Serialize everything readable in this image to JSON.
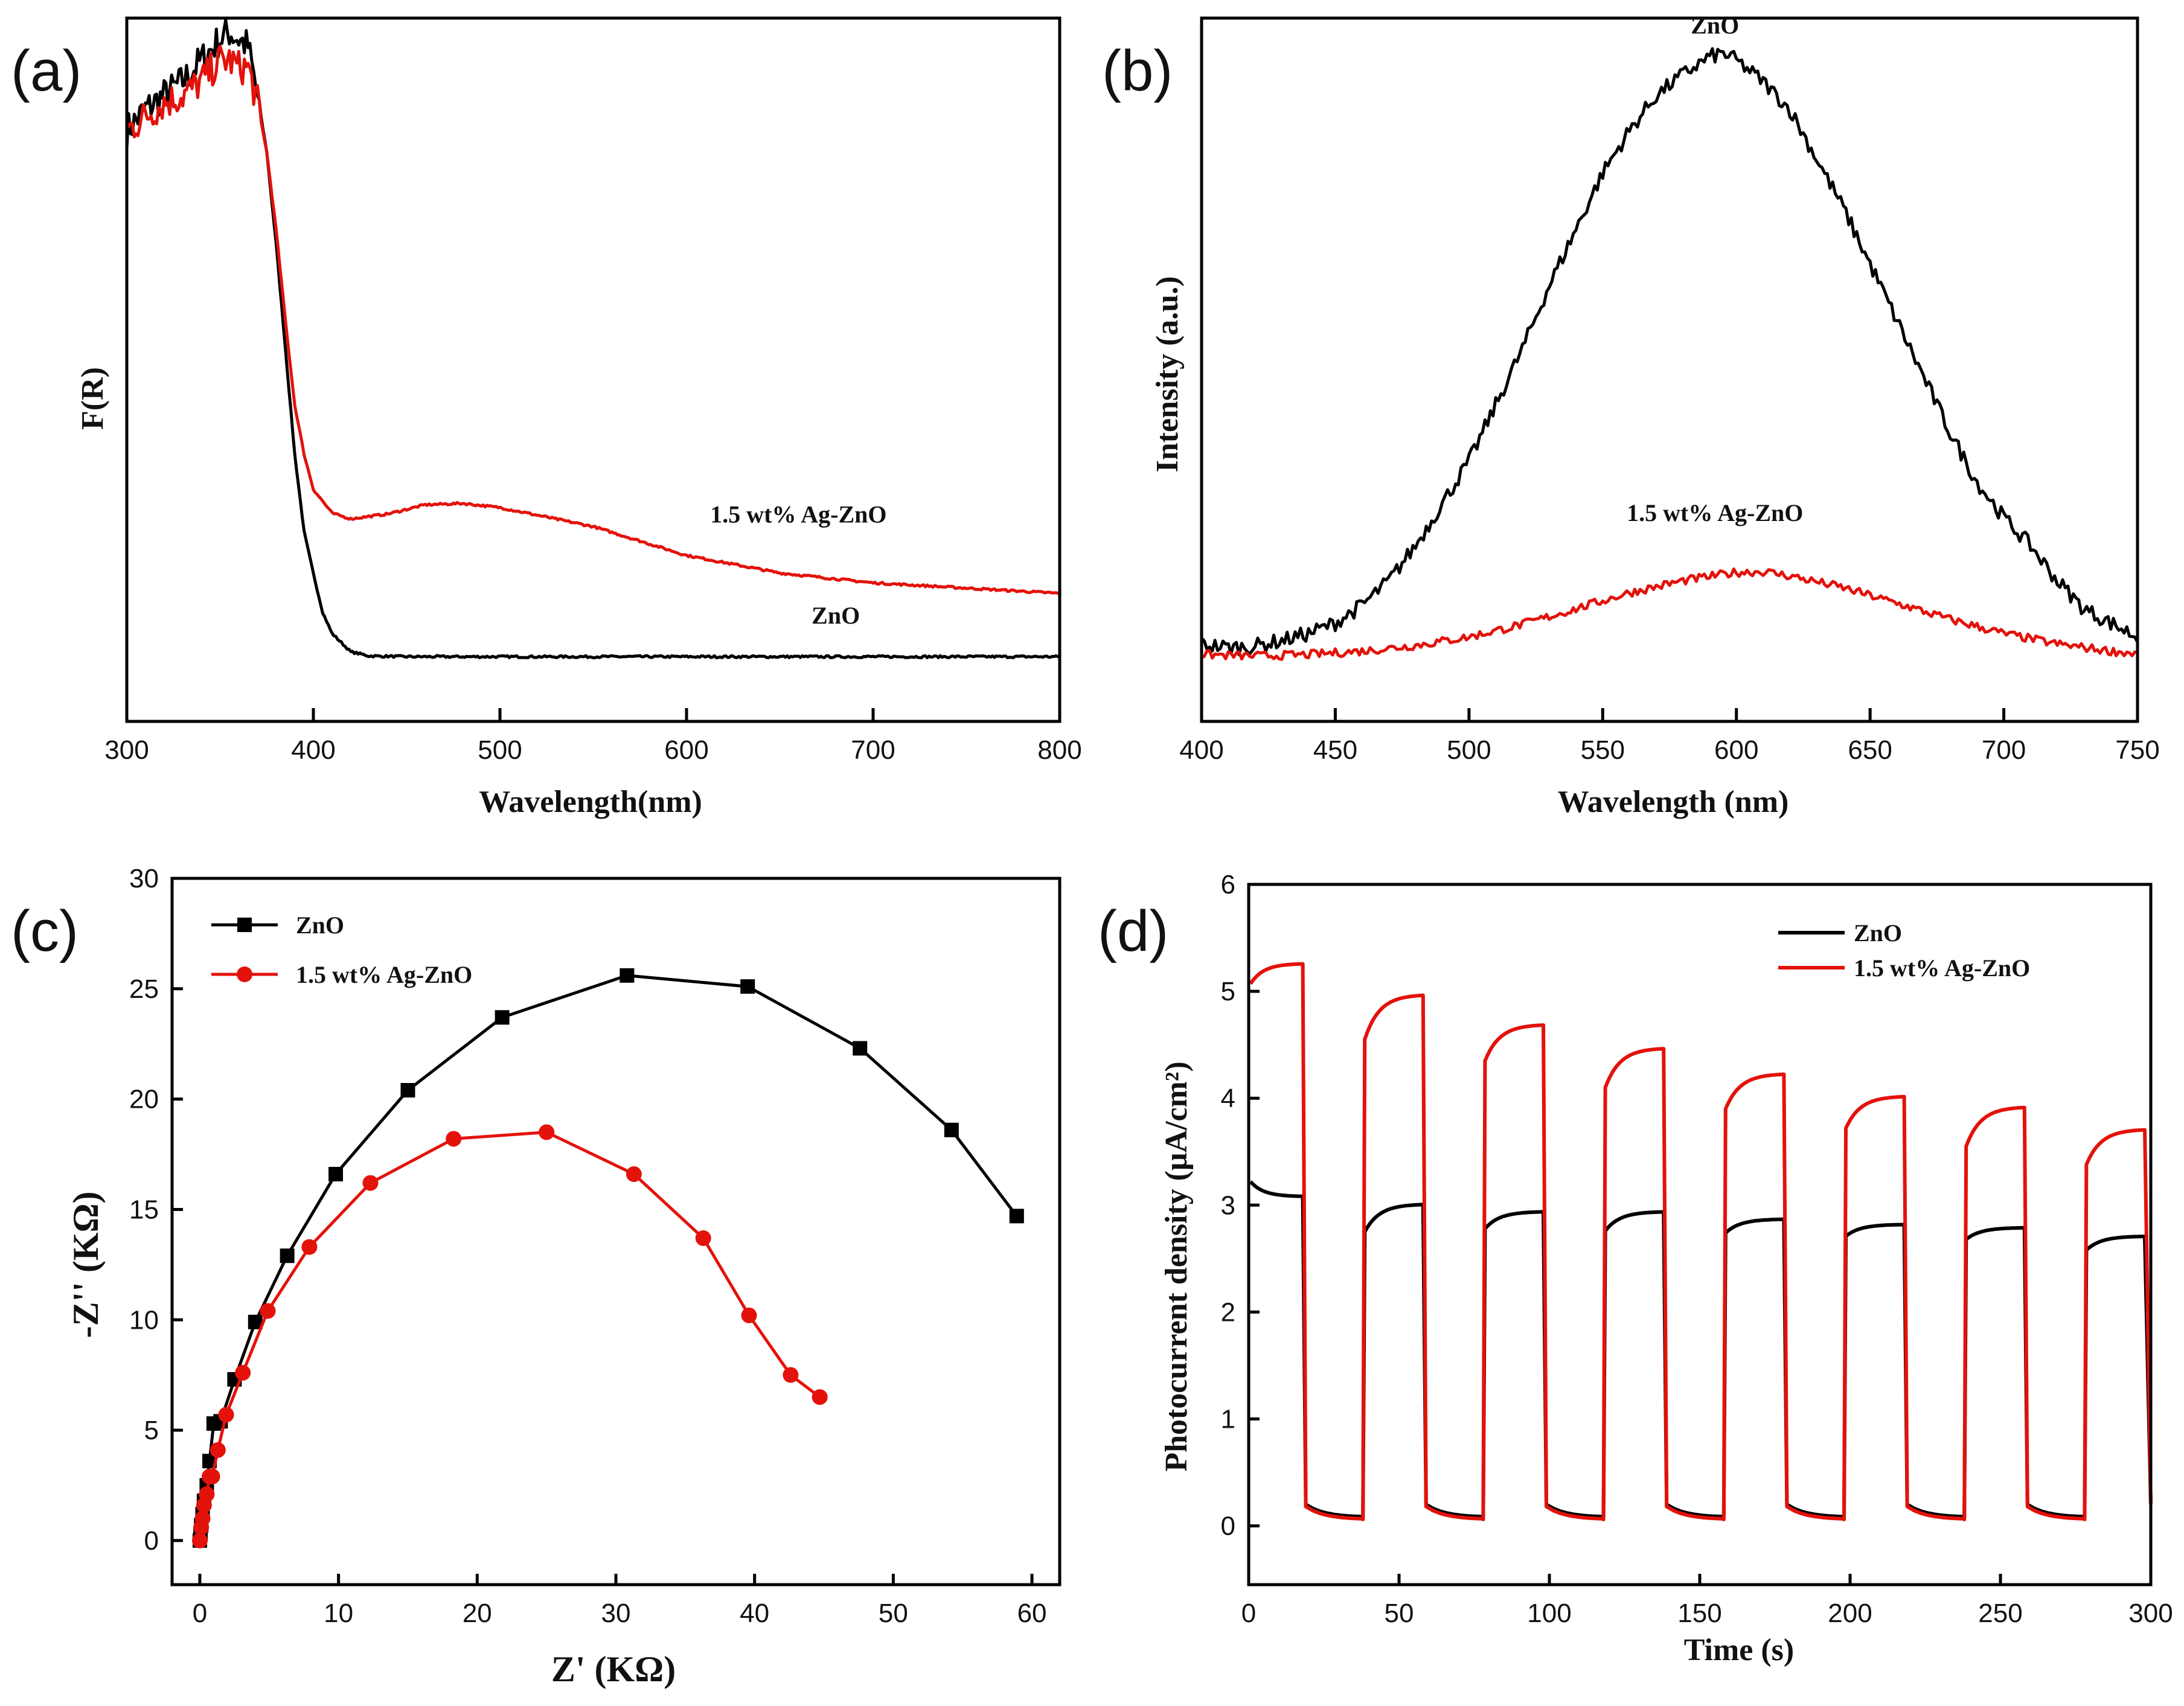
{
  "chart_data": [
    {
      "panel": "(a)",
      "type": "line",
      "xlabel": "Wavelength(nm)",
      "ylabel": "F(R)",
      "xlim": [
        300,
        800
      ],
      "ylim": [
        0,
        1.0
      ],
      "xticks": [
        "300",
        "400",
        "500",
        "600",
        "700",
        "800"
      ],
      "yticks_shown": false,
      "annotations": [
        {
          "text": "1.5 wt% Ag-ZnO",
          "x": 660,
          "y": 0.283
        },
        {
          "text": "ZnO",
          "x": 680,
          "y": 0.139
        }
      ],
      "colors": {
        "ZnO": "#000000",
        "1.5 wt% Ag-ZnO": "#e3120b"
      },
      "series": [
        {
          "name": "ZnO",
          "x": [
            300,
            310,
            320,
            330,
            340,
            350,
            355,
            360,
            365,
            370,
            375,
            380,
            385,
            390,
            395,
            400,
            405,
            410,
            420,
            430,
            450,
            500,
            600,
            700,
            800
          ],
          "y": [
            0.84,
            0.87,
            0.89,
            0.91,
            0.94,
            0.97,
            0.98,
            0.97,
            0.96,
            0.89,
            0.81,
            0.68,
            0.53,
            0.38,
            0.27,
            0.21,
            0.155,
            0.125,
            0.099,
            0.093,
            0.092,
            0.092,
            0.092,
            0.092,
            0.092
          ]
        },
        {
          "name": "1.5 wt% Ag-ZnO",
          "x": [
            300,
            310,
            320,
            330,
            340,
            350,
            355,
            360,
            365,
            370,
            375,
            380,
            385,
            390,
            395,
            400,
            410,
            420,
            440,
            460,
            480,
            500,
            550,
            600,
            650,
            700,
            800
          ],
          "y": [
            0.84,
            0.86,
            0.88,
            0.89,
            0.91,
            0.94,
            0.94,
            0.93,
            0.93,
            0.88,
            0.81,
            0.7,
            0.57,
            0.45,
            0.38,
            0.33,
            0.296,
            0.288,
            0.295,
            0.308,
            0.31,
            0.304,
            0.277,
            0.236,
            0.211,
            0.197,
            0.182
          ]
        }
      ]
    },
    {
      "panel": "(b)",
      "type": "line",
      "xlabel": "Wavelength (nm)",
      "ylabel": "Intensity (a.u.)",
      "xlim": [
        400,
        750
      ],
      "ylim": [
        0,
        1.0
      ],
      "xticks": [
        "400",
        "450",
        "500",
        "550",
        "600",
        "650",
        "700",
        "750"
      ],
      "yticks_shown": false,
      "annotations": [
        {
          "text": "ZnO",
          "x": 592,
          "y": 0.978
        },
        {
          "text": "1.5 wt% Ag-ZnO",
          "x": 592,
          "y": 0.285
        }
      ],
      "colors": {
        "ZnO": "#000000",
        "1.5 wt% Ag-ZnO": "#e3120b"
      },
      "series": [
        {
          "name": "ZnO",
          "x": [
            400,
            410,
            420,
            430,
            440,
            450,
            460,
            470,
            480,
            490,
            500,
            510,
            520,
            530,
            540,
            550,
            560,
            570,
            580,
            590,
            595,
            600,
            610,
            620,
            630,
            640,
            650,
            660,
            670,
            680,
            690,
            700,
            710,
            720,
            730,
            740,
            750
          ],
          "y": [
            0.11,
            0.105,
            0.107,
            0.115,
            0.125,
            0.14,
            0.165,
            0.2,
            0.25,
            0.31,
            0.37,
            0.45,
            0.53,
            0.62,
            0.7,
            0.78,
            0.84,
            0.89,
            0.92,
            0.945,
            0.95,
            0.94,
            0.91,
            0.87,
            0.8,
            0.73,
            0.65,
            0.57,
            0.49,
            0.41,
            0.34,
            0.29,
            0.25,
            0.2,
            0.16,
            0.14,
            0.12
          ]
        },
        {
          "name": "1.5 wt% Ag-ZnO",
          "x": [
            400,
            420,
            440,
            460,
            480,
            500,
            520,
            540,
            560,
            580,
            600,
            610,
            620,
            640,
            660,
            680,
            700,
            720,
            740,
            750
          ],
          "y": [
            0.095,
            0.093,
            0.095,
            0.1,
            0.108,
            0.12,
            0.138,
            0.16,
            0.183,
            0.2,
            0.212,
            0.213,
            0.207,
            0.19,
            0.168,
            0.145,
            0.125,
            0.11,
            0.1,
            0.096
          ]
        }
      ]
    },
    {
      "panel": "(c)",
      "type": "scatter",
      "xlabel": "Z' (KΩ)",
      "ylabel": "-Z'' (KΩ)",
      "xlim": [
        -2,
        62
      ],
      "ylim": [
        -2,
        30
      ],
      "xticks": [
        "0",
        "10",
        "20",
        "30",
        "40",
        "50",
        "60"
      ],
      "yticks": [
        "0",
        "5",
        "10",
        "15",
        "20",
        "25",
        "30"
      ],
      "legend": [
        "ZnO",
        "1.5 wt% Ag-ZnO"
      ],
      "colors": {
        "ZnO": "#000000",
        "1.5 wt% Ag-ZnO": "#e3120b"
      },
      "series": [
        {
          "name": "ZnO",
          "marker": "square",
          "x": [
            0.0,
            0.05,
            0.1,
            0.2,
            0.3,
            0.5,
            0.7,
            1.0,
            1.5,
            2.5,
            4.0,
            6.3,
            9.8,
            15.0,
            21.8,
            30.8,
            39.5,
            47.6,
            54.2,
            58.9
          ],
          "y": [
            0.0,
            0.3,
            0.7,
            1.2,
            1.8,
            2.5,
            3.6,
            5.3,
            5.4,
            7.3,
            9.9,
            12.9,
            16.6,
            20.4,
            23.7,
            25.6,
            25.1,
            22.3,
            18.6,
            14.7
          ]
        },
        {
          "name": "1.5 wt% Ag-ZnO",
          "marker": "circle",
          "x": [
            0.0,
            0.1,
            0.2,
            0.3,
            0.5,
            0.7,
            0.9,
            1.3,
            1.9,
            3.1,
            4.9,
            7.9,
            12.3,
            18.3,
            25.0,
            31.3,
            36.3,
            39.6,
            42.6,
            44.7
          ],
          "y": [
            0.0,
            0.6,
            1.0,
            1.6,
            2.1,
            2.9,
            2.9,
            4.1,
            5.7,
            7.6,
            10.4,
            13.3,
            16.2,
            18.2,
            18.5,
            16.6,
            13.7,
            10.2,
            7.5,
            6.5
          ]
        }
      ]
    },
    {
      "panel": "(d)",
      "type": "line",
      "xlabel": "Time (s)",
      "ylabel": "Photocurrent density (μA/cm²)",
      "xlim": [
        0,
        300
      ],
      "ylim": [
        -0.55,
        6.0
      ],
      "xticks": [
        "0",
        "50",
        "100",
        "150",
        "200",
        "250",
        "300"
      ],
      "yticks": [
        "0",
        "1",
        "2",
        "3",
        "4",
        "5",
        "6"
      ],
      "legend": [
        "ZnO",
        "1.5 wt% Ag-ZnO"
      ],
      "colors": {
        "ZnO": "#000000",
        "1.5 wt% Ag-ZnO": "#e3120b"
      },
      "light_cycles": [
        [
          0,
          18
        ],
        [
          38,
          58
        ],
        [
          78,
          98
        ],
        [
          118,
          138
        ],
        [
          158,
          178
        ],
        [
          198,
          218
        ],
        [
          238,
          258
        ],
        [
          278,
          298
        ]
      ],
      "series": [
        {
          "name": "ZnO",
          "on_start": [
            3.22,
            2.75,
            2.78,
            2.76,
            2.74,
            2.71,
            2.68,
            2.58
          ],
          "on_end": [
            3.08,
            3.01,
            2.94,
            2.94,
            2.87,
            2.82,
            2.79,
            2.71
          ],
          "off_start": 0.2,
          "off_end": 0.08
        },
        {
          "name": "1.5 wt% Ag-ZnO",
          "on_start": [
            5.07,
            4.55,
            4.35,
            4.1,
            3.9,
            3.72,
            3.55,
            3.38
          ],
          "on_end": [
            5.26,
            4.97,
            4.69,
            4.47,
            4.23,
            4.02,
            3.92,
            3.71
          ],
          "off_start": 0.18,
          "off_end": 0.06
        }
      ]
    }
  ]
}
